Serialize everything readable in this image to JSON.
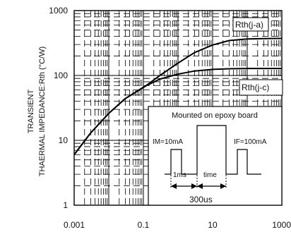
{
  "chart_data": {
    "type": "line",
    "title": "",
    "xlabel": "",
    "ylabel_line1": "TRANSIENT",
    "ylabel_line2": "THAERMAL IMPEDANCE:Rth (°C/W)",
    "xscale": "log",
    "yscale": "log",
    "xlim": [
      0.001,
      1000
    ],
    "ylim": [
      1,
      1000
    ],
    "x_ticks": [
      "0.001",
      "0.1",
      "10",
      "1000"
    ],
    "y_ticks": [
      "1",
      "10",
      "100",
      "1000"
    ],
    "grid": true,
    "series": [
      {
        "name": "Rth(j-a)",
        "x": [
          0.001,
          0.003,
          0.01,
          0.03,
          0.1,
          0.3,
          1,
          3,
          10,
          30,
          100,
          300,
          1000
        ],
        "y": [
          6,
          13,
          26,
          44,
          65,
          100,
          155,
          225,
          295,
          345,
          365,
          370,
          372
        ]
      },
      {
        "name": "Rth(j-c)",
        "x": [
          0.001,
          0.003,
          0.01,
          0.03,
          0.1,
          0.3,
          1,
          3,
          10,
          30,
          100,
          300,
          1000
        ],
        "y": [
          6,
          13,
          26,
          44,
          66,
          88,
          105,
          117,
          124,
          127,
          128,
          128,
          128
        ]
      }
    ],
    "inset": {
      "title": "Mounted on epoxy board",
      "im_label": "IM=10mA",
      "if_label": "IF=100mA",
      "pulse_label": "1ms",
      "time_label": "time",
      "duration_label": "300us"
    }
  }
}
